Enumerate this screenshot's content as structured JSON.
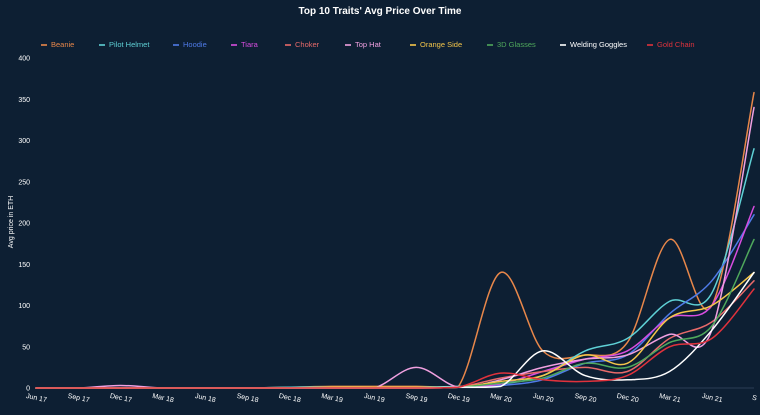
{
  "chart_data": {
    "type": "line",
    "title": "Top 10 Traits' Avg Price Over Time",
    "ylabel": "Avg price in ETH",
    "xlabel": "",
    "ylim": [
      0,
      400
    ],
    "yticks": [
      "0",
      "50",
      "100",
      "150",
      "200",
      "250",
      "300",
      "350",
      "400"
    ],
    "x": [
      "Jun 17",
      "Sep 17",
      "Dec 17",
      "Mar 18",
      "Jun 18",
      "Sep 18",
      "Dec 18",
      "Mar 19",
      "Jun 19",
      "Sep 19",
      "Dec 19",
      "Mar 20",
      "Jun 20",
      "Sep 20",
      "Dec 20",
      "Mar 21",
      "Jun 21",
      "S"
    ],
    "grid": false,
    "legend_position": "top",
    "series": [
      {
        "name": "Beanie",
        "color": "#e8874a",
        "values": [
          0,
          0,
          0,
          0,
          0,
          0,
          1,
          2,
          2,
          2,
          2,
          140,
          45,
          40,
          55,
          180,
          100,
          358
        ]
      },
      {
        "name": "Pilot Helmet",
        "color": "#5fd1d6",
        "values": [
          0,
          0,
          0,
          0,
          0,
          0,
          1,
          1,
          1,
          1,
          2,
          5,
          15,
          45,
          60,
          105,
          115,
          290
        ]
      },
      {
        "name": "Hoodie",
        "color": "#4f7be8",
        "values": [
          0,
          0,
          0,
          0,
          0,
          0,
          0,
          0,
          0,
          0,
          1,
          3,
          10,
          30,
          40,
          90,
          130,
          210
        ]
      },
      {
        "name": "Tiara",
        "color": "#d84de0",
        "values": [
          0,
          0,
          0,
          0,
          0,
          0,
          0,
          0,
          0,
          0,
          1,
          5,
          20,
          35,
          45,
          85,
          100,
          220
        ]
      },
      {
        "name": "Choker",
        "color": "#e86a6a",
        "values": [
          0,
          0,
          0,
          0,
          0,
          0,
          0,
          0,
          0,
          0,
          1,
          12,
          20,
          25,
          20,
          60,
          80,
          130
        ]
      },
      {
        "name": "Top Hat",
        "color": "#f0a0e0",
        "values": [
          0,
          0,
          3,
          0,
          0,
          0,
          0,
          0,
          0,
          25,
          1,
          10,
          25,
          35,
          40,
          65,
          70,
          340
        ]
      },
      {
        "name": "Orange Side",
        "color": "#f5c64a",
        "values": [
          0,
          0,
          0,
          0,
          0,
          0,
          0,
          1,
          1,
          1,
          1,
          8,
          15,
          40,
          30,
          85,
          100,
          140
        ]
      },
      {
        "name": "3D Glasses",
        "color": "#4fa85c",
        "values": [
          0,
          0,
          0,
          0,
          0,
          0,
          0,
          0,
          0,
          0,
          1,
          6,
          12,
          30,
          25,
          55,
          75,
          180
        ]
      },
      {
        "name": "Welding Goggles",
        "color": "#ffffff",
        "values": [
          0,
          0,
          0,
          0,
          0,
          0,
          0,
          0,
          0,
          0,
          1,
          2,
          45,
          15,
          10,
          20,
          70,
          140
        ]
      },
      {
        "name": "Gold Chain",
        "color": "#e0323c",
        "values": [
          0,
          0,
          0,
          0,
          0,
          0,
          0,
          0,
          0,
          0,
          1,
          18,
          10,
          8,
          15,
          50,
          60,
          120
        ]
      }
    ]
  }
}
